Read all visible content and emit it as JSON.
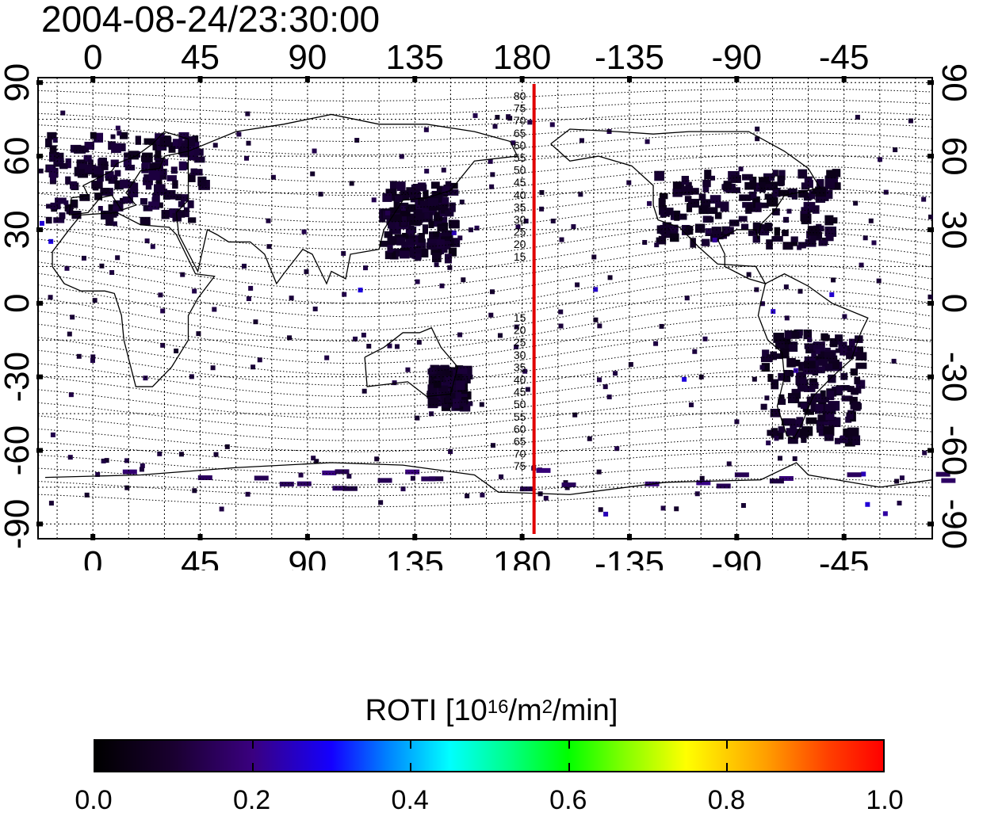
{
  "timestamp": "2004-08-24/23:30:00",
  "map": {
    "lon_ticks": [
      {
        "lon": 0,
        "label": "0"
      },
      {
        "lon": 45,
        "label": "45"
      },
      {
        "lon": 90,
        "label": "90"
      },
      {
        "lon": 135,
        "label": "135"
      },
      {
        "lon": 180,
        "label": "180"
      },
      {
        "lon": 225,
        "label": "-135"
      },
      {
        "lon": 270,
        "label": "-90"
      },
      {
        "lon": 315,
        "label": "-45"
      }
    ],
    "lat_ticks": [
      {
        "lat": 90,
        "label": "90"
      },
      {
        "lat": 60,
        "label": "60"
      },
      {
        "lat": 30,
        "label": "30"
      },
      {
        "lat": 0,
        "label": "0"
      },
      {
        "lat": -30,
        "label": "-30"
      },
      {
        "lat": -60,
        "label": "-60"
      },
      {
        "lat": -90,
        "label": "-90"
      }
    ],
    "lon_range": [
      -23,
      352
    ],
    "lat_range": [
      -96,
      92
    ],
    "grid": true,
    "local_time_meridian_lon": 185,
    "local_time_meridian_color": "#e00000",
    "north_mlat_labels": [
      "80",
      "75",
      "70",
      "65",
      "60",
      "55",
      "50",
      "45",
      "40",
      "35",
      "30",
      "25",
      "20",
      "15"
    ],
    "south_mlat_labels": [
      "15",
      "20",
      "25",
      "30",
      "35",
      "40",
      "45",
      "50",
      "55",
      "60",
      "65",
      "70",
      "75"
    ]
  },
  "colorbar": {
    "title_prefix": "ROTI  [10",
    "title_sup1": "16",
    "title_mid": "/m",
    "title_sup2": "2",
    "title_suffix": "/min]",
    "min": 0.0,
    "max": 1.0,
    "labels": [
      "0.0",
      "0.2",
      "0.4",
      "0.6",
      "0.8",
      "1.0"
    ],
    "colors": [
      "#000000",
      "#3a0080",
      "#1400ff",
      "#00ffff",
      "#00ff00",
      "#ffff00",
      "#ff0000"
    ]
  },
  "roti_regions": [
    {
      "name": "europe",
      "lon": [
        -20,
        45
      ],
      "lat": [
        35,
        70
      ],
      "value": 0.06
    },
    {
      "name": "north-america",
      "lon": [
        235,
        310
      ],
      "lat": [
        25,
        55
      ],
      "value": 0.05
    },
    {
      "name": "japan-korea",
      "lon": [
        120,
        150
      ],
      "lat": [
        20,
        50
      ],
      "value": 0.05
    },
    {
      "name": "australia",
      "lon": [
        140,
        155
      ],
      "lat": [
        -40,
        -25
      ],
      "value": 0.05
    },
    {
      "name": "south-america",
      "lon": [
        280,
        320
      ],
      "lat": [
        -55,
        -10
      ],
      "value": 0.05
    }
  ]
}
